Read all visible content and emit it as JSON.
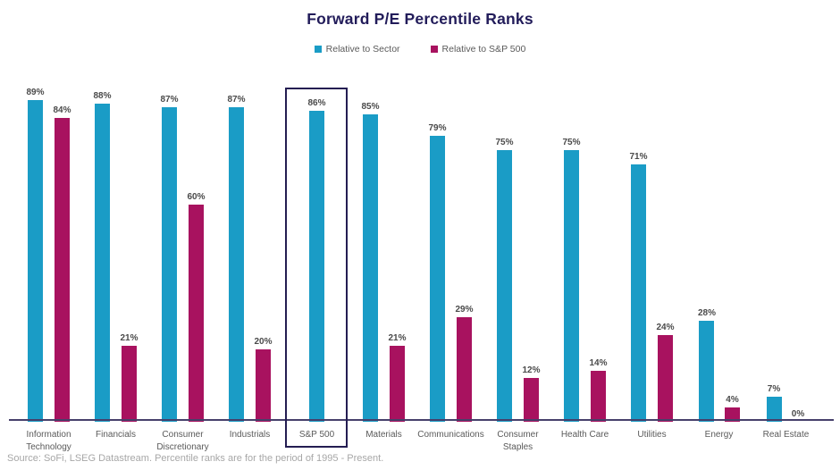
{
  "title": "Forward P/E Percentile Ranks",
  "legend": [
    {
      "label": "Relative to Sector",
      "color": "#1a9cc6"
    },
    {
      "label": "Relative to S&P 500",
      "color": "#a8125f"
    }
  ],
  "source": "Source: SoFi, LSEG Datastream. Percentile ranks are for the period of 1995 - Present.",
  "colors": {
    "title": "#221c5a",
    "axis_line": "#46406b",
    "highlight_box_border": "#241d52",
    "value_label": "#4a4a4a",
    "category_label": "#5a5a5a"
  },
  "chart_data": {
    "type": "bar",
    "title": "Forward P/E Percentile Ranks",
    "categories": [
      "Information Technology",
      "Financials",
      "Consumer Discretionary",
      "Industrials",
      "S&P 500",
      "Materials",
      "Communications",
      "Consumer Staples",
      "Health Care",
      "Utilities",
      "Energy",
      "Real Estate"
    ],
    "series": [
      {
        "name": "Relative to Sector",
        "color": "#1a9cc6",
        "values": [
          89,
          88,
          87,
          87,
          86,
          85,
          79,
          75,
          75,
          71,
          28,
          7
        ]
      },
      {
        "name": "Relative to S&P 500",
        "color": "#a8125f",
        "values": [
          84,
          21,
          60,
          20,
          null,
          21,
          29,
          12,
          14,
          24,
          4,
          0
        ]
      }
    ],
    "value_suffix": "%",
    "xlabel": "",
    "ylabel": "",
    "ylim": [
      0,
      100
    ],
    "grid": false,
    "legend_position": "top-center",
    "data_labels": true,
    "highlighted_category": "S&P 500"
  }
}
